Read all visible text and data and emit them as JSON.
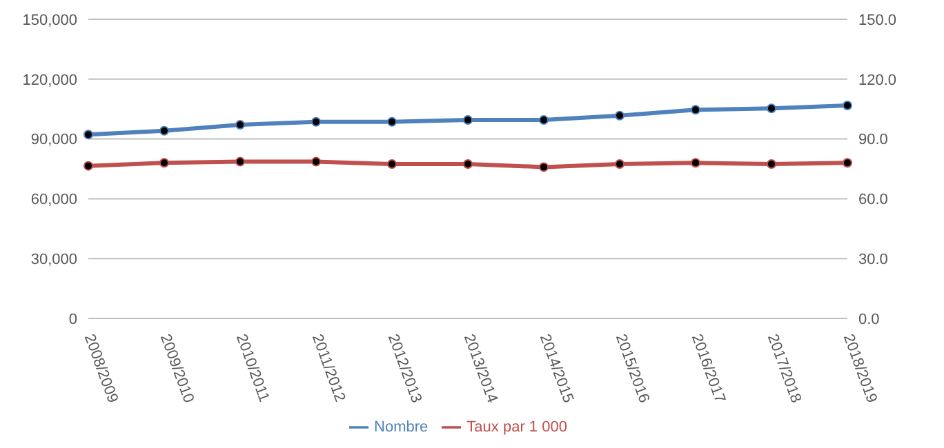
{
  "chart_data": {
    "type": "line",
    "categories": [
      "2008/2009",
      "2009/2010",
      "2010/2011",
      "2011/2012",
      "2012/2013",
      "2013/2014",
      "2014/2015",
      "2015/2016",
      "2016/2017",
      "2017/2018",
      "2018/2019"
    ],
    "series": [
      {
        "name": "Nombre",
        "color": "#4f81bd",
        "values": [
          92200,
          94100,
          97100,
          98600,
          98600,
          99500,
          99500,
          101700,
          104600,
          105300,
          106800
        ]
      },
      {
        "name": "Taux par 1 000",
        "color": "#c0504d",
        "axis": "y2",
        "values": [
          76.5,
          78.0,
          78.6,
          78.6,
          77.4,
          77.4,
          75.9,
          77.4,
          78.0,
          77.4,
          78.0
        ]
      }
    ],
    "ylim": [
      0,
      150000
    ],
    "yticks": [
      {
        "value": 0,
        "label": "0"
      },
      {
        "value": 30000,
        "label": "30,000"
      },
      {
        "value": 60000,
        "label": "60,000"
      },
      {
        "value": 90000,
        "label": "90,000"
      },
      {
        "value": 120000,
        "label": "120,000"
      },
      {
        "value": 150000,
        "label": "150,000"
      }
    ],
    "y2lim": [
      0,
      150
    ],
    "y2ticks": [
      {
        "value": 0,
        "label": "0.0"
      },
      {
        "value": 30,
        "label": "30.0"
      },
      {
        "value": 60,
        "label": "60.0"
      },
      {
        "value": 90,
        "label": "90.0"
      },
      {
        "value": 120,
        "label": "120.0"
      },
      {
        "value": 150,
        "label": "150.0"
      }
    ],
    "grid": "y",
    "legend": "bottom",
    "marker": "circle",
    "line_style": "solid"
  }
}
